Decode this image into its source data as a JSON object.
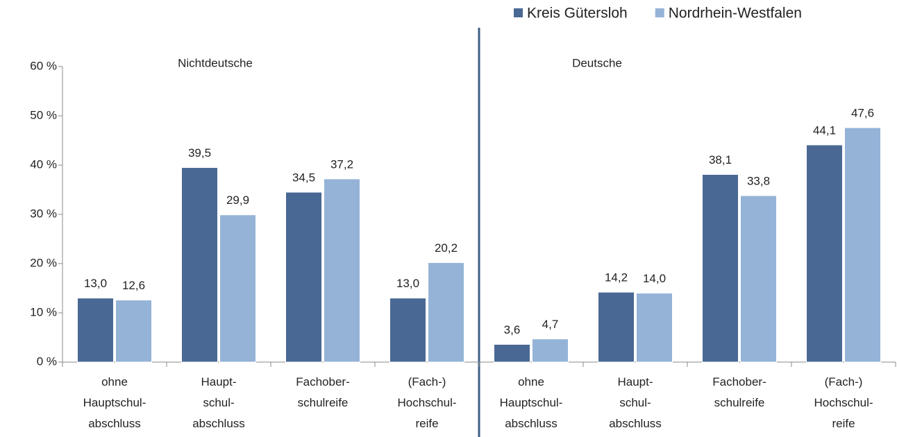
{
  "chart_data": {
    "type": "bar",
    "categories": [
      [
        "ohne",
        "Hauptschul-",
        "abschluss"
      ],
      [
        "Haupt-",
        "schul-",
        "abschluss"
      ],
      [
        "Fachober-",
        "schulreife"
      ],
      [
        "(Fach-)",
        "Hochschul-",
        "reife"
      ],
      [
        "ohne",
        "Hauptschul-",
        "abschluss"
      ],
      [
        "Haupt-",
        "schul-",
        "abschluss"
      ],
      [
        "Fachober-",
        "schulreife"
      ],
      [
        "(Fach-)",
        "Hochschul-",
        "reife"
      ]
    ],
    "series": [
      {
        "name": "Kreis Gütersloh",
        "color": "#4a6894",
        "values": [
          13.0,
          39.5,
          34.5,
          13.0,
          3.6,
          14.2,
          38.1,
          44.1
        ],
        "value_labels": [
          "13,0",
          "39,5",
          "34,5",
          "13,0",
          "3,6",
          "14,2",
          "38,1",
          "44,1"
        ]
      },
      {
        "name": "Nordrhein-Westfalen",
        "color": "#95b3d7",
        "values": [
          12.6,
          29.9,
          37.2,
          20.2,
          4.7,
          14.0,
          33.8,
          47.6
        ],
        "value_labels": [
          "12,6",
          "29,9",
          "37,2",
          "20,2",
          "4,7",
          "14,0",
          "33,8",
          "47,6"
        ]
      }
    ],
    "annotations": [
      "Nichtdeutsche",
      "Deutsche"
    ],
    "ylim": [
      0,
      60
    ],
    "yticks": [
      {
        "value": 0,
        "label": "0 %"
      },
      {
        "value": 10,
        "label": "10 %"
      },
      {
        "value": 20,
        "label": "20 %"
      },
      {
        "value": 30,
        "label": "30 %"
      },
      {
        "value": 40,
        "label": "40 %"
      },
      {
        "value": 50,
        "label": "50 %"
      },
      {
        "value": 60,
        "label": "60 %"
      }
    ],
    "legend": "top-right"
  }
}
